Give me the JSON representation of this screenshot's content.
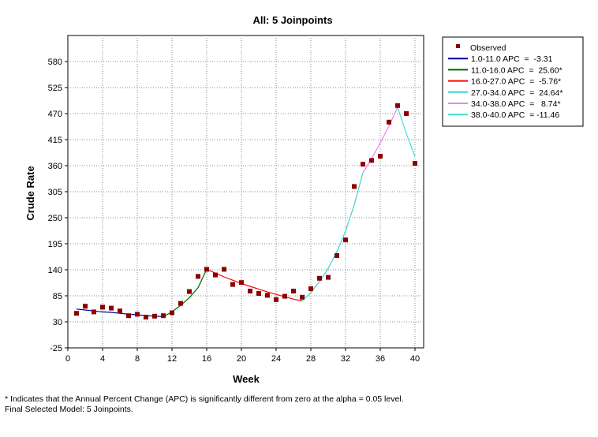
{
  "chart_data": {
    "type": "scatter",
    "title": "All: 5 Joinpoints",
    "xlabel": "Week",
    "ylabel": "Crude Rate",
    "xlim": [
      0,
      41
    ],
    "ylim": [
      -25,
      635
    ],
    "xticks": [
      0,
      4,
      8,
      12,
      16,
      20,
      24,
      28,
      32,
      36,
      40
    ],
    "yticks": [
      -25,
      30,
      85,
      140,
      195,
      250,
      305,
      360,
      415,
      470,
      525,
      580
    ],
    "grid": true,
    "legend_position": "right",
    "observed": {
      "name": "Observed",
      "color": "#8b0000",
      "x": [
        1,
        2,
        3,
        4,
        5,
        6,
        7,
        8,
        9,
        10,
        11,
        12,
        13,
        14,
        15,
        16,
        17,
        18,
        19,
        20,
        21,
        22,
        23,
        24,
        25,
        26,
        27,
        28,
        29,
        30,
        31,
        32,
        33,
        34,
        35,
        36,
        37,
        38,
        39,
        40
      ],
      "y": [
        48,
        63,
        51,
        61,
        59,
        53,
        43,
        46,
        40,
        42,
        43,
        49,
        69,
        94,
        126,
        141,
        129,
        141,
        109,
        113,
        95,
        90,
        86,
        77,
        84,
        95,
        82,
        100,
        122,
        124,
        170,
        203,
        316,
        363,
        371,
        380,
        452,
        487,
        470,
        365
      ]
    },
    "segments": [
      {
        "name": "1.0-11.0 APC  =  -3.31",
        "color": "#0000a0",
        "x": [
          1,
          2,
          3,
          4,
          5,
          6,
          7,
          8,
          9,
          10,
          11
        ],
        "y": [
          57,
          55,
          53,
          51,
          50,
          48,
          46,
          45,
          43,
          42,
          41
        ]
      },
      {
        "name": "11.0-16.0 APC  =  25.60*",
        "color": "#006400",
        "x": [
          11,
          12,
          13,
          14,
          15,
          16
        ],
        "y": [
          41,
          51,
          65,
          81,
          102,
          141
        ]
      },
      {
        "name": "16.0-27.0 APC  =  -5.76*",
        "color": "#ff0000",
        "x": [
          16,
          17,
          18,
          19,
          20,
          21,
          22,
          23,
          24,
          25,
          26,
          27
        ],
        "y": [
          141,
          133,
          125,
          118,
          111,
          105,
          99,
          93,
          88,
          83,
          78,
          74
        ]
      },
      {
        "name": "27.0-34.0 APC  =  24.64*",
        "color": "#40d0d0",
        "x": [
          27,
          28,
          29,
          30,
          31,
          32,
          33,
          34
        ],
        "y": [
          74,
          92,
          115,
          143,
          178,
          222,
          277,
          345
        ]
      },
      {
        "name": "34.0-38.0 APC  =   8.74*",
        "color": "#ee82ee",
        "x": [
          34,
          35,
          36,
          37,
          38
        ],
        "y": [
          345,
          375,
          408,
          444,
          483
        ]
      },
      {
        "name": "38.0-40.0 APC  = -11.46",
        "color": "#40e0d0",
        "x": [
          38,
          39,
          40
        ],
        "y": [
          483,
          428,
          379
        ]
      }
    ]
  },
  "footnotes": {
    "line1": "* Indicates that the Annual Percent Change (APC) is significantly different from zero at the alpha = 0.05 level.",
    "line2": "Final Selected Model: 5 Joinpoints."
  }
}
